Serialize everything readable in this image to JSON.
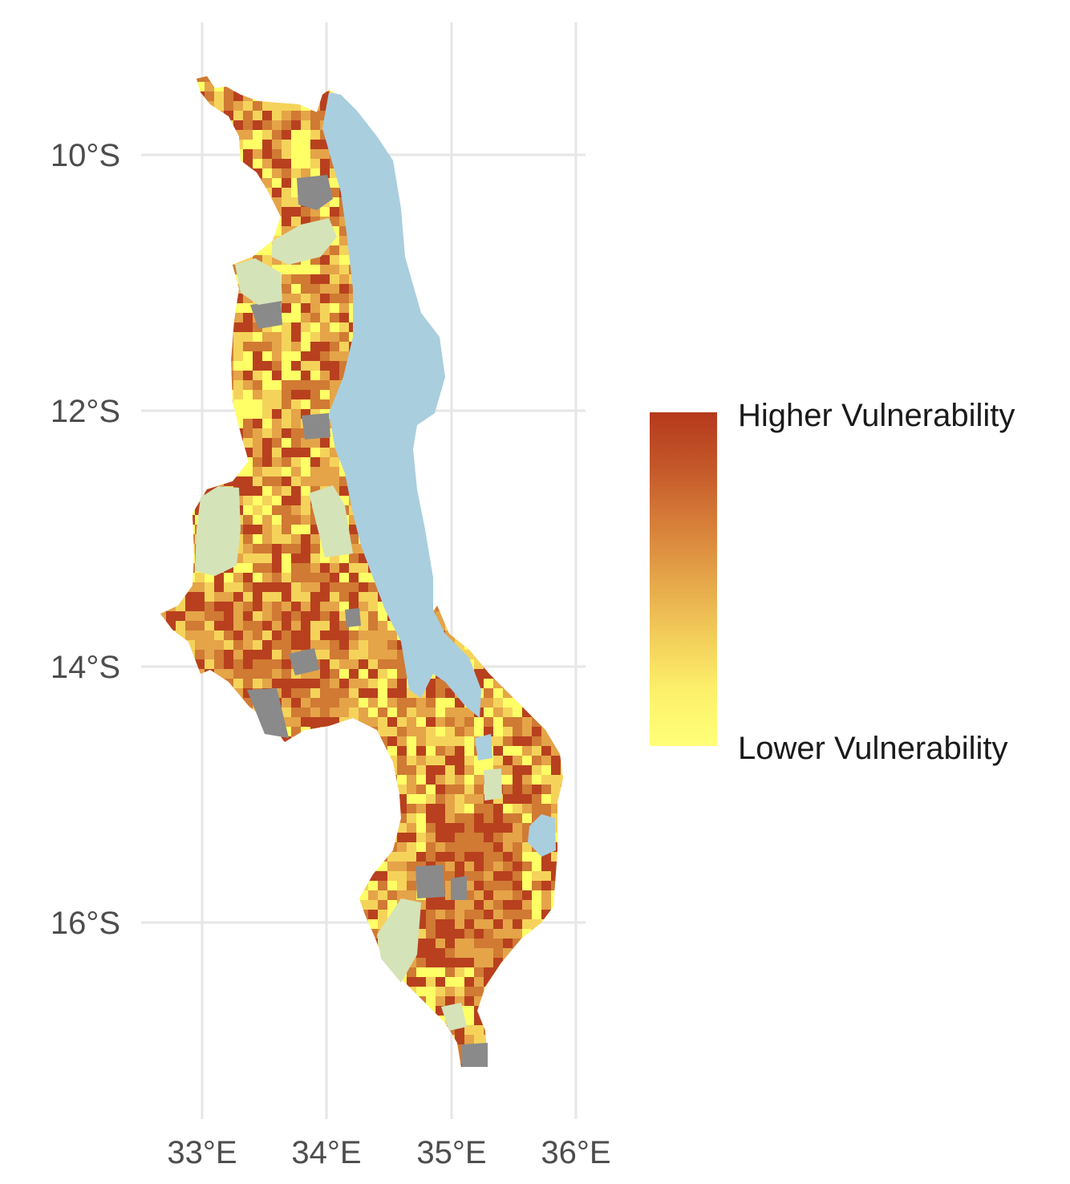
{
  "map": {
    "y_axis_labels": [
      "10°S",
      "12°S",
      "14°S",
      "16°S"
    ],
    "x_axis_labels": [
      "33°E",
      "34°E",
      "35°E",
      "36°E"
    ],
    "y_axis_values": [
      -10,
      -12,
      -14,
      -16
    ],
    "x_axis_values": [
      33,
      34,
      35,
      36
    ],
    "layers": {
      "land_color_scale": [
        "#ffff66",
        "#f5d35a",
        "#e5a448",
        "#d07a34",
        "#b8401e"
      ],
      "lake_color": "#a9cede",
      "protected_area_color": "#d5e3b8",
      "no_data_color": "#8a8a8a"
    }
  },
  "legend": {
    "high_label": "Higher Vulnerability",
    "low_label": "Lower Vulnerability",
    "gradient": [
      "#b5391c",
      "#c4582a",
      "#d77e39",
      "#e5a549",
      "#f2cc5a",
      "#fdf06a",
      "#ffff77"
    ]
  }
}
